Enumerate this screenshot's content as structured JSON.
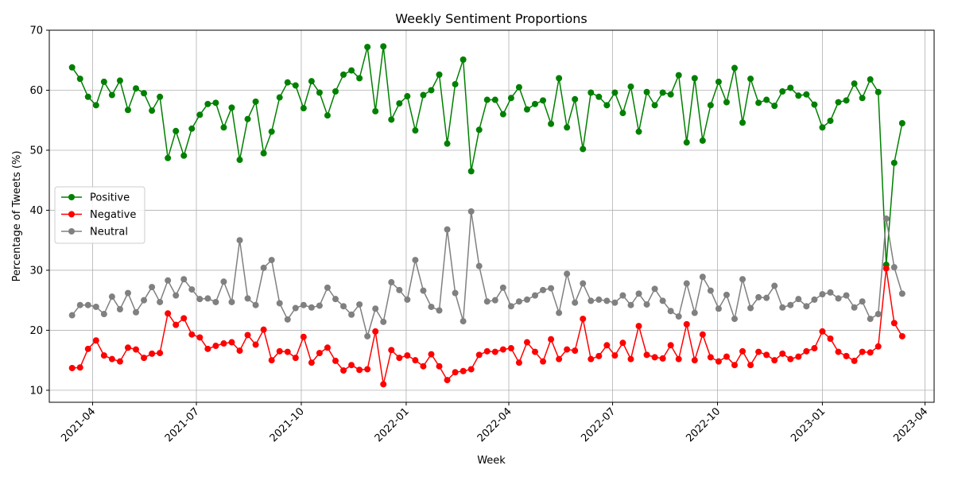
{
  "chart_data": {
    "type": "line",
    "title": "Weekly Sentiment Proportions",
    "xlabel": "Week",
    "ylabel": "Percentage of Tweets (%)",
    "x_start": "2021-03-14",
    "x_step_days": 7,
    "xlim": [
      "2021-02-22",
      "2023-04-09"
    ],
    "ylim": [
      8,
      70
    ],
    "yticks": [
      10,
      20,
      30,
      40,
      50,
      60,
      70
    ],
    "xticks": [
      "2021-04",
      "2021-07",
      "2021-10",
      "2022-01",
      "2022-04",
      "2022-07",
      "2022-10",
      "2023-01",
      "2023-04"
    ],
    "grid": true,
    "legend_position": "center-left",
    "series": [
      {
        "name": "Positive",
        "color": "#008000",
        "values": [
          63.8,
          61.9,
          58.9,
          57.5,
          61.4,
          59.2,
          61.6,
          56.7,
          60.3,
          59.5,
          56.6,
          58.9,
          48.7,
          53.2,
          49.1,
          53.6,
          55.9,
          57.7,
          57.9,
          53.8,
          57.1,
          48.4,
          55.2,
          58.1,
          49.5,
          53.1,
          58.8,
          61.3,
          60.8,
          57.0,
          61.5,
          59.6,
          55.8,
          59.8,
          62.6,
          63.3,
          62.0,
          67.2,
          56.5,
          67.3,
          55.1,
          57.8,
          59.0,
          53.3,
          59.2,
          60.0,
          62.6,
          51.1,
          61.0,
          65.1,
          46.5,
          53.4,
          58.4,
          58.4,
          56.0,
          58.7,
          60.5,
          56.8,
          57.7,
          58.3,
          54.4,
          62.0,
          53.8,
          58.5,
          50.2,
          59.6,
          58.9,
          57.5,
          59.6,
          56.2,
          60.6,
          53.1,
          59.7,
          57.5,
          59.6,
          59.3,
          62.5,
          51.3,
          62.0,
          51.6,
          57.5,
          61.4,
          58.0,
          63.7,
          54.6,
          61.9,
          57.9,
          58.4,
          57.4,
          59.8,
          60.4,
          59.1,
          59.3,
          57.6,
          53.8,
          54.9,
          58.0,
          58.3,
          61.1,
          58.7,
          61.8,
          59.7,
          30.9,
          47.9,
          54.5
        ]
      },
      {
        "name": "Negative",
        "color": "#ff0000",
        "values": [
          13.7,
          13.8,
          16.9,
          18.3,
          15.8,
          15.2,
          14.8,
          17.1,
          16.8,
          15.4,
          16.1,
          16.2,
          22.8,
          20.9,
          22.0,
          19.3,
          18.8,
          16.9,
          17.4,
          17.8,
          18.0,
          16.6,
          19.2,
          17.6,
          20.1,
          15.0,
          16.5,
          16.4,
          15.4,
          18.9,
          14.6,
          16.2,
          17.1,
          14.9,
          13.3,
          14.2,
          13.4,
          13.5,
          19.8,
          11.0,
          16.7,
          15.4,
          15.8,
          15.0,
          14.0,
          16.0,
          14.0,
          11.7,
          13.0,
          13.2,
          13.5,
          15.9,
          16.5,
          16.4,
          16.8,
          17.0,
          14.6,
          18.0,
          16.4,
          14.8,
          18.5,
          15.2,
          16.8,
          16.6,
          21.9,
          15.2,
          15.7,
          17.5,
          15.8,
          17.9,
          15.2,
          20.7,
          15.9,
          15.5,
          15.3,
          17.5,
          15.2,
          21.0,
          15.0,
          19.3,
          15.5,
          14.8,
          15.6,
          14.2,
          16.5,
          14.2,
          16.4,
          15.9,
          15.0,
          16.1,
          15.2,
          15.6,
          16.5,
          17.0,
          19.8,
          18.6,
          16.4,
          15.7,
          14.9,
          16.4,
          16.3,
          17.3,
          30.3,
          21.2,
          19.0
        ]
      },
      {
        "name": "Neutral",
        "color": "#808080",
        "values": [
          22.5,
          24.2,
          24.2,
          23.9,
          22.7,
          25.6,
          23.5,
          26.2,
          23.0,
          25.0,
          27.2,
          24.7,
          28.3,
          25.8,
          28.5,
          26.8,
          25.2,
          25.3,
          24.7,
          28.1,
          24.7,
          35.0,
          25.3,
          24.2,
          30.4,
          31.7,
          24.5,
          21.8,
          23.7,
          24.2,
          23.8,
          24.1,
          27.1,
          25.2,
          24.0,
          22.6,
          24.3,
          19.0,
          23.6,
          21.4,
          28.0,
          26.7,
          25.1,
          31.7,
          26.6,
          23.9,
          23.3,
          36.8,
          26.2,
          21.5,
          39.8,
          30.7,
          24.8,
          25.0,
          27.1,
          24.0,
          24.8,
          25.1,
          25.8,
          26.7,
          27.0,
          22.9,
          29.4,
          24.6,
          27.8,
          24.9,
          25.1,
          24.9,
          24.6,
          25.8,
          24.2,
          26.1,
          24.3,
          26.9,
          24.9,
          23.2,
          22.3,
          27.8,
          22.9,
          28.9,
          26.6,
          23.6,
          25.9,
          21.9,
          28.5,
          23.7,
          25.5,
          25.4,
          27.4,
          23.8,
          24.2,
          25.2,
          24.0,
          25.1,
          26.0,
          26.3,
          25.3,
          25.8,
          23.8,
          24.8,
          21.9,
          22.7,
          38.6,
          30.5,
          26.1
        ]
      }
    ]
  }
}
